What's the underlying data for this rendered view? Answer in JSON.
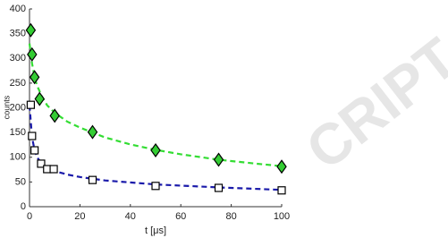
{
  "chart_data": {
    "type": "scatter",
    "xlabel": "t [μs]",
    "ylabel": "counts",
    "xlim": [
      0,
      100
    ],
    "xticks": [
      0,
      20,
      40,
      60,
      80,
      100
    ],
    "ylim": [
      0,
      400
    ],
    "yticks": [
      0,
      50,
      100,
      150,
      200,
      250,
      300,
      350,
      400
    ],
    "watermark": "CRIPT",
    "series": [
      {
        "kind": "line",
        "color": "#33dd33",
        "dash": true,
        "x": [
          0,
          1,
          2,
          3,
          5,
          7,
          10,
          15,
          20,
          30,
          40,
          50,
          60,
          75,
          90,
          100
        ],
        "values": [
          330,
          290,
          262,
          245,
          222,
          205,
          190,
          172,
          160,
          140,
          126,
          115,
          106,
          95,
          87,
          82
        ]
      },
      {
        "kind": "line",
        "color": "#1a1aaa",
        "dash": true,
        "x": [
          0,
          1,
          2,
          3,
          5,
          7,
          10,
          15,
          20,
          30,
          50,
          75,
          100
        ],
        "values": [
          205,
          140,
          115,
          100,
          86,
          79,
          72,
          65,
          60,
          53,
          45,
          39,
          34
        ]
      },
      {
        "kind": "marker",
        "marker": "diamond",
        "color": "#33cc33",
        "x": [
          0.5,
          1,
          2,
          4,
          10,
          25,
          50,
          75,
          100
        ],
        "values": [
          357,
          308,
          262,
          218,
          184,
          151,
          114,
          95,
          81
        ]
      },
      {
        "kind": "marker",
        "marker": "square",
        "color": "#ffffff",
        "x": [
          0.5,
          1,
          2,
          4.6,
          7,
          9.6,
          25,
          50,
          75,
          100
        ],
        "values": [
          206,
          143,
          114,
          87,
          76,
          76,
          54,
          42,
          38,
          33
        ]
      }
    ]
  }
}
